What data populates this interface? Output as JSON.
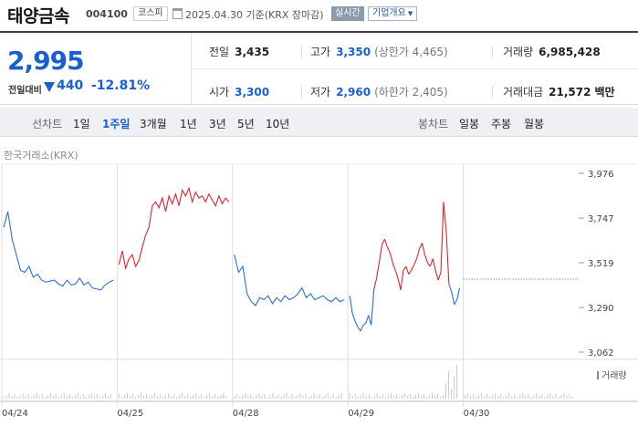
{
  "header": {
    "name": "태양금속",
    "code": "004100",
    "market": "코스피",
    "date_text": "2025.04.30  기준(KRX 장마감)",
    "realtime": "실시간",
    "company_info": "기업개요"
  },
  "price": {
    "current": "2,995",
    "change_label": "전일대비",
    "change_value": "440",
    "change_pct": "-12.81%",
    "direction": "down"
  },
  "stats": {
    "prev_close": {
      "label": "전일",
      "value": "3,435"
    },
    "high": {
      "label": "고가",
      "value": "3,350",
      "sub": "(상한가 4,465)"
    },
    "volume": {
      "label": "거래량",
      "value": "6,985,428"
    },
    "open": {
      "label": "시가",
      "value": "3,300"
    },
    "low": {
      "label": "저가",
      "value": "2,960",
      "sub": "(하한가 2,405)"
    },
    "amount": {
      "label": "거래대금",
      "value": "21,572",
      "unit": "백만"
    }
  },
  "toolbar": {
    "line_label": "선차트",
    "line_periods": [
      "1일",
      "1주일",
      "3개월",
      "1년",
      "3년",
      "5년",
      "10년"
    ],
    "line_active": "1주일",
    "candle_label": "봉차트",
    "candle_periods": [
      "일봉",
      "주봉",
      "월봉"
    ]
  },
  "chart": {
    "source": "한국거래소(KRX)",
    "volume_legend": "거래량",
    "colors": {
      "up": "#e0242c",
      "down": "#2b6fd4",
      "baseline": "#555555"
    }
  },
  "chart_data": {
    "type": "line",
    "y_ticks": [
      3976,
      3747,
      3519,
      3290,
      3062
    ],
    "ylim": [
      3062,
      3976
    ],
    "x_ticks": [
      "04/24",
      "04/25",
      "04/28",
      "04/29",
      "04/30"
    ],
    "prev_close_ref": 3435,
    "series": [
      {
        "day": "04/24",
        "dir": "down",
        "points": [
          3700,
          3780,
          3640,
          3560,
          3480,
          3470,
          3500,
          3445,
          3460,
          3430,
          3420,
          3425,
          3430,
          3410,
          3400,
          3430,
          3405,
          3410,
          3440,
          3405,
          3420,
          3390,
          3385,
          3380,
          3405,
          3420,
          3430
        ]
      },
      {
        "day": "04/25",
        "dir": "up",
        "points": [
          3510,
          3580,
          3490,
          3540,
          3560,
          3500,
          3530,
          3600,
          3660,
          3700,
          3810,
          3830,
          3800,
          3850,
          3780,
          3860,
          3820,
          3870,
          3810,
          3890,
          3860,
          3900,
          3830,
          3880,
          3850,
          3860,
          3830,
          3870,
          3840,
          3810,
          3860,
          3820,
          3850,
          3830
        ]
      },
      {
        "day": "04/28",
        "dir": "down",
        "points": [
          3560,
          3470,
          3500,
          3360,
          3320,
          3300,
          3340,
          3330,
          3350,
          3310,
          3340,
          3320,
          3350,
          3330,
          3340,
          3360,
          3390,
          3340,
          3360,
          3330,
          3340,
          3350,
          3330,
          3320,
          3340,
          3320,
          3330
        ]
      },
      {
        "day": "04/29",
        "dir": "mixed",
        "points": [
          3350,
          3260,
          3220,
          3190,
          3170,
          3200,
          3210,
          3250,
          3200,
          3380,
          3440,
          3520,
          3610,
          3640,
          3600,
          3570,
          3520,
          3480,
          3440,
          3380,
          3480,
          3500,
          3460,
          3480,
          3510,
          3540,
          3590,
          3620,
          3560,
          3520,
          3500,
          3540,
          3480,
          3430,
          3470,
          3830,
          3680,
          3410,
          3370,
          3305,
          3330,
          3390
        ]
      }
    ]
  }
}
